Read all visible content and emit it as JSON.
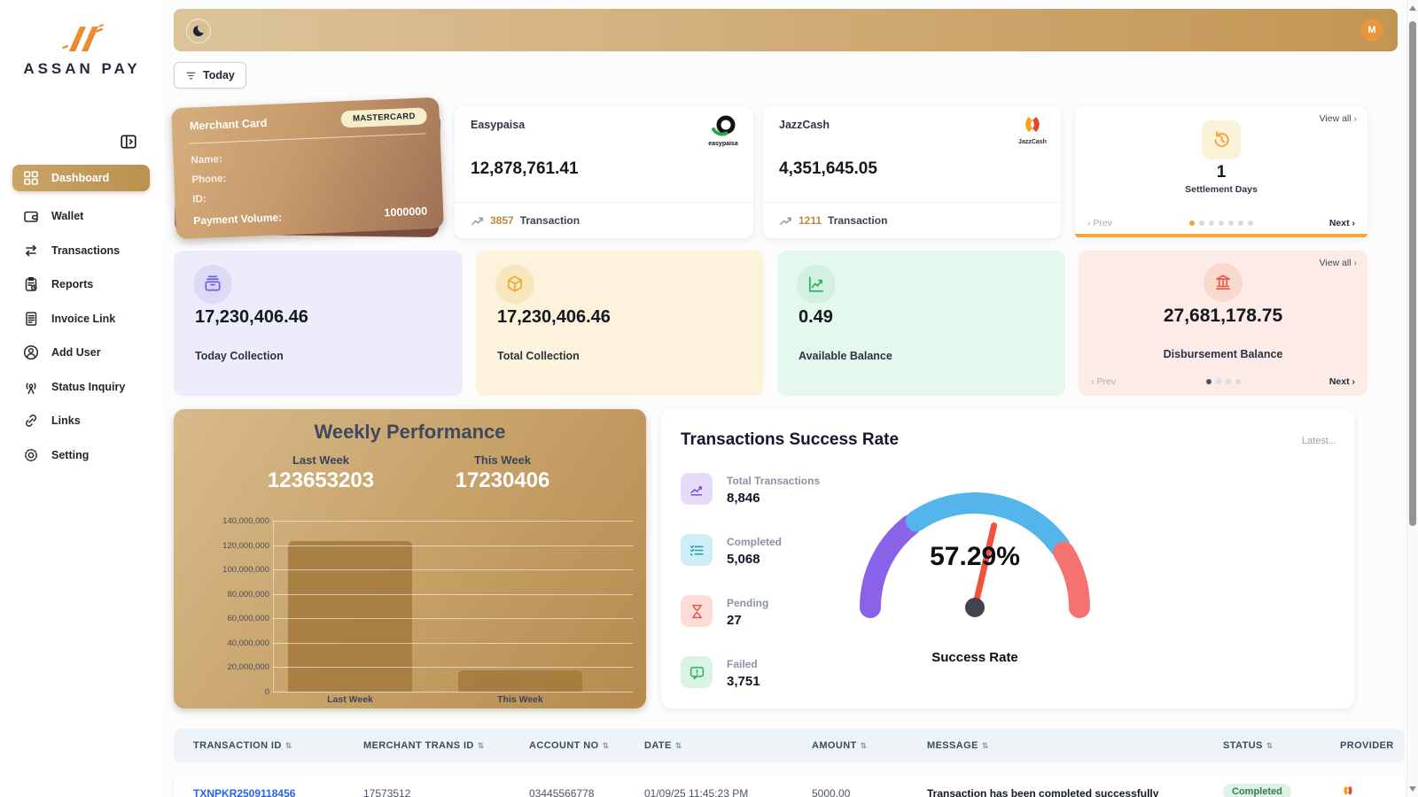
{
  "brand": {
    "name": "ASSAN PAY"
  },
  "topbar": {
    "avatar_initial": "M"
  },
  "filter_button": {
    "label": "Today"
  },
  "icons": {
    "chevron_left": "‹",
    "chevron_right": "›",
    "sort": "⇅"
  },
  "sidebar": {
    "items": [
      {
        "label": "Dashboard",
        "icon": "dashboard-grid",
        "active": true
      },
      {
        "label": "Wallet",
        "icon": "wallet",
        "active": false
      },
      {
        "label": "Transactions",
        "icon": "transfer-arrows",
        "active": false
      },
      {
        "label": "Reports",
        "icon": "clipboard-clock",
        "active": false
      },
      {
        "label": "Invoice Link",
        "icon": "document",
        "active": false
      },
      {
        "label": "Add User",
        "icon": "user-circle",
        "active": false
      },
      {
        "label": "Status Inquiry",
        "icon": "antenna",
        "active": false
      },
      {
        "label": "Links",
        "icon": "chain-link",
        "active": false
      },
      {
        "label": "Setting",
        "icon": "gear",
        "active": false
      }
    ]
  },
  "merchant_card": {
    "title": "Merchant Card",
    "badge": "MASTERCARD",
    "name_label": "Name:",
    "phone_label": "Phone:",
    "id_label": "ID:",
    "volume_label": "Payment Volume:",
    "volume_value": "1000000"
  },
  "provider_cards": [
    {
      "name": "Easypaisa",
      "logo": "easypaisa-logo",
      "value": "12,878,761.41",
      "tx_count": "3857",
      "tx_label": "Transaction"
    },
    {
      "name": "JazzCash",
      "logo": "jazzcash-logo",
      "value": "4,351,645.05",
      "tx_count": "1211",
      "tx_label": "Transaction"
    }
  ],
  "settlement_card": {
    "view_all": "View all",
    "value": "1",
    "label": "Settlement Days",
    "prev": "Prev",
    "next": "Next",
    "carousel": {
      "count": 7,
      "active": 0,
      "active_color": "#f0a437"
    }
  },
  "stat_cards": [
    {
      "value": "17,230,406.46",
      "label": "Today Collection",
      "bg": "#edecfb",
      "icon": "archive-tray",
      "icon_bg": "#dddaf8",
      "icon_color": "#6f5fe6"
    },
    {
      "value": "17,230,406.46",
      "label": "Total Collection",
      "bg": "#fdf3dc",
      "icon": "cube-package",
      "icon_bg": "#f8e7bd",
      "icon_color": "#eda93a"
    },
    {
      "value": "0.49",
      "label": "Available Balance",
      "bg": "#e4f8ed",
      "icon": "chart-line",
      "icon_bg": "#d2f0e0",
      "icon_color": "#2fae67"
    }
  ],
  "disbursement_card": {
    "view_all": "View all",
    "value": "27,681,178.75",
    "label": "Disbursement Balance",
    "prev": "Prev",
    "next": "Next",
    "bg": "#fcebe7",
    "carousel": {
      "count": 4,
      "active": 0,
      "active_color": "#4b5563"
    }
  },
  "chart_data": [
    {
      "type": "bar",
      "title": "Weekly Performance",
      "categories": [
        "Last Week",
        "This Week"
      ],
      "values": [
        123653203,
        17230406
      ],
      "headline_labels": [
        "Last Week",
        "This Week"
      ],
      "headline_values": [
        "123653203",
        "17230406"
      ],
      "ylim": [
        0,
        140000000
      ],
      "ytick_labels": [
        "140,000,000",
        "120,000,000",
        "100,000,000",
        "80,000,000",
        "60,000,000",
        "40,000,000",
        "20,000,000",
        "0"
      ],
      "grid": true,
      "legend": false,
      "bar_color": "rgba(164,122,62,0.88)"
    },
    {
      "type": "gauge",
      "title": "Success Rate",
      "value_percent": 57.29,
      "value_label": "57.29%",
      "range": [
        0,
        100
      ],
      "segments": [
        {
          "name": "low",
          "color": "#8b63ea",
          "from_deg": 180,
          "to_deg": 128
        },
        {
          "name": "mid",
          "color": "#54b5eb",
          "from_deg": 124,
          "to_deg": 36
        },
        {
          "name": "high",
          "color": "#f47272",
          "from_deg": 32,
          "to_deg": 0
        }
      ],
      "needle_color": "#f4503a"
    }
  ],
  "success_panel": {
    "title": "Transactions Success Rate",
    "latest": "Latest...",
    "stats": [
      {
        "label": "Total Transactions",
        "value": "8,846",
        "icon": "trend-chart",
        "icon_bg": "#e6dcfa",
        "icon_color": "#7c52d8"
      },
      {
        "label": "Completed",
        "value": "5,068",
        "icon": "checklist",
        "icon_bg": "#cdeef7",
        "icon_color": "#2a9db8"
      },
      {
        "label": "Pending",
        "value": "27",
        "icon": "hourglass",
        "icon_bg": "#fbdcd7",
        "icon_color": "#e3574a"
      },
      {
        "label": "Failed",
        "value": "3,751",
        "icon": "message-alert",
        "icon_bg": "#d9f3e4",
        "icon_color": "#35b36b"
      }
    ],
    "gauge_caption": "Success Rate"
  },
  "table": {
    "columns": [
      {
        "label": "TRANSACTION ID"
      },
      {
        "label": "MERCHANT TRANS ID"
      },
      {
        "label": "ACCOUNT NO"
      },
      {
        "label": "DATE"
      },
      {
        "label": "AMOUNT"
      },
      {
        "label": "MESSAGE"
      },
      {
        "label": "STATUS"
      },
      {
        "label": "PROVIDER"
      }
    ],
    "partial_row": {
      "transaction_id": "TXNPKR2509118456",
      "merchant_trans_id": "17573512",
      "account_no": "03445566778",
      "date": "01/09/25 11:45:23 PM",
      "amount": "5000.00",
      "message": "Transaction has been completed successfully",
      "status": "Completed",
      "provider": "jazzcash"
    }
  },
  "colors": {
    "accent_gold": "#bb914f",
    "topbar_gradient": [
      "#dcc49b",
      "#c39553"
    ],
    "settlement_accent": "#f2a93b",
    "avatar_bg": "#e8963e"
  }
}
